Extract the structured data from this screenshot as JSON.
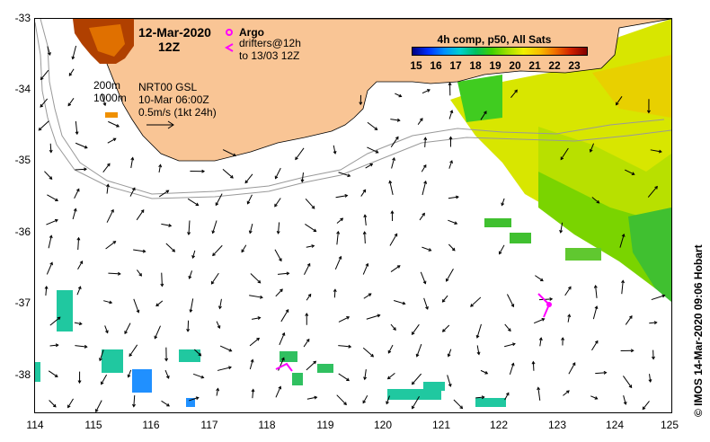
{
  "map_title": {
    "date": "12-Mar-2020",
    "hour": "12Z"
  },
  "legend": {
    "argo_label": "Argo",
    "drifters_line1": "drifters@12h",
    "drifters_line2": "to 13/03 12Z",
    "argo_color": "#ff00ff",
    "drifter_color": "#ff00ff"
  },
  "contours": {
    "c200": "200m",
    "c1000": "1000m"
  },
  "product": {
    "line1": "NRT00 GSL",
    "line2": "10-Mar 06:00Z",
    "line3": "0.5m/s (1kt 24h)"
  },
  "colorbar": {
    "title": "4h comp, p50, All Sats",
    "ticks": [
      "15",
      "16",
      "17",
      "18",
      "19",
      "20",
      "21",
      "22",
      "23"
    ]
  },
  "axes": {
    "lat_labels": [
      "-33",
      "-34",
      "-35",
      "-36",
      "-37",
      "-38"
    ],
    "lon_labels": [
      "114",
      "115",
      "116",
      "117",
      "118",
      "119",
      "120",
      "121",
      "122",
      "123",
      "124",
      "125"
    ]
  },
  "credit": "© IMOS 14-Mar-2020 09:06 Hobart",
  "colors": {
    "land": "#f9c595",
    "sst_warm": "#e0e800",
    "sst_green": "#60d000",
    "sst_cyan": "#20c8a0",
    "sst_blue": "#2090ff"
  }
}
